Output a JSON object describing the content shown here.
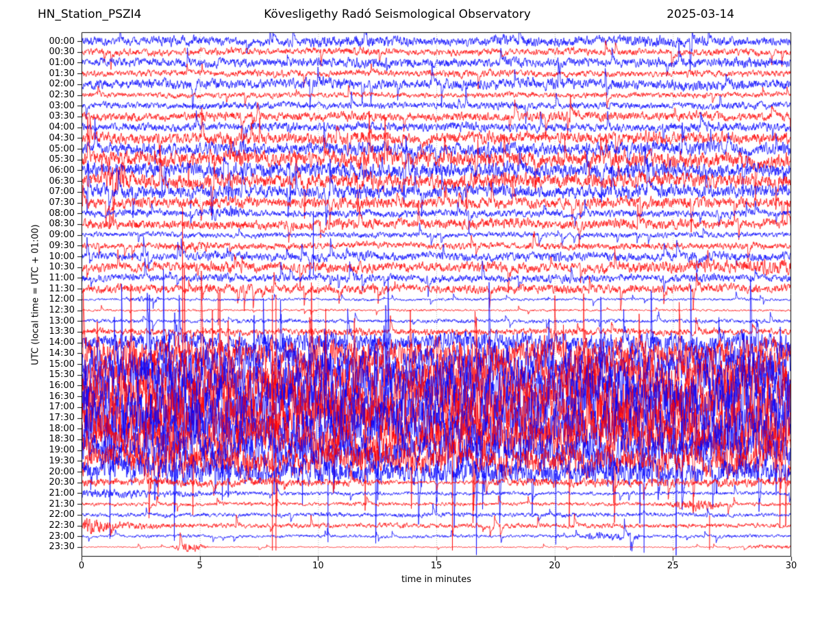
{
  "chart_data": {
    "type": "line",
    "subtype": "helicorder-dayplot",
    "titles": {
      "left": "HN_Station_PSZI4",
      "center": "Kövesligethy Radó Seismological Observatory",
      "right": "2025-03-14"
    },
    "xlabel": "time in minutes",
    "ylabel": "UTC (local time = UTC + 01:00)",
    "x_ticks": [
      0,
      5,
      10,
      15,
      20,
      25,
      30
    ],
    "x_range": [
      0,
      30
    ],
    "minutes_per_row": 30,
    "grid": {
      "vertical_dotted_at": [
        5,
        10,
        15,
        20,
        25
      ],
      "color": "#b0b0b0"
    },
    "colors": {
      "blue": "#0000ff",
      "red": "#ff0000",
      "axis": "#000000"
    },
    "rows": [
      {
        "label": "00:00",
        "c": "blue",
        "env": [
          9,
          8,
          11,
          9,
          8,
          10,
          13,
          9,
          8,
          12,
          11,
          9,
          12,
          11,
          9,
          9
        ]
      },
      {
        "label": "00:30",
        "c": "red",
        "env": [
          6,
          7,
          6,
          8,
          6,
          7,
          8,
          6,
          7,
          6,
          8,
          7,
          6,
          8,
          7,
          6
        ]
      },
      {
        "label": "01:00",
        "c": "blue",
        "env": [
          8,
          9,
          8,
          10,
          8,
          9,
          11,
          9,
          8,
          10,
          9,
          8,
          10,
          9,
          11,
          9
        ]
      },
      {
        "label": "01:30",
        "c": "red",
        "env": [
          6,
          6,
          7,
          6,
          8,
          6,
          7,
          6,
          8,
          7,
          6,
          7,
          6,
          8,
          6,
          7
        ]
      },
      {
        "label": "02:00",
        "c": "blue",
        "env": [
          10,
          9,
          11,
          10,
          9,
          12,
          10,
          9,
          11,
          10,
          12,
          10,
          9,
          11,
          10,
          10
        ]
      },
      {
        "label": "02:30",
        "c": "red",
        "env": [
          5,
          5,
          6,
          5,
          6,
          5,
          6,
          5,
          5,
          6,
          5,
          6,
          5,
          6,
          5,
          5
        ]
      },
      {
        "label": "03:00",
        "c": "blue",
        "env": [
          6,
          7,
          6,
          7,
          8,
          6,
          7,
          6,
          7,
          8,
          6,
          7,
          6,
          7,
          8,
          7
        ]
      },
      {
        "label": "03:30",
        "c": "red",
        "env": [
          8,
          9,
          8,
          10,
          8,
          9,
          10,
          8,
          9,
          8,
          10,
          9,
          8,
          10,
          8,
          9
        ]
      },
      {
        "label": "04:00",
        "c": "blue",
        "env": [
          8,
          8,
          9,
          8,
          10,
          8,
          9,
          8,
          10,
          9,
          8,
          9,
          8,
          10,
          9,
          9
        ]
      },
      {
        "label": "04:30",
        "c": "red",
        "env": [
          11,
          12,
          11,
          13,
          11,
          12,
          14,
          11,
          12,
          13,
          11,
          12,
          14,
          12,
          11,
          12
        ]
      },
      {
        "label": "05:00",
        "c": "blue",
        "env": [
          12,
          13,
          12,
          14,
          12,
          13,
          15,
          12,
          13,
          14,
          12,
          13,
          15,
          13,
          12,
          13
        ]
      },
      {
        "label": "05:30",
        "c": "red",
        "env": [
          15,
          16,
          15,
          18,
          15,
          16,
          18,
          15,
          16,
          17,
          15,
          16,
          18,
          16,
          15,
          16
        ]
      },
      {
        "label": "06:00",
        "c": "blue",
        "env": [
          14,
          15,
          14,
          16,
          14,
          15,
          17,
          14,
          15,
          16,
          14,
          15,
          17,
          15,
          14,
          15
        ]
      },
      {
        "label": "06:30",
        "c": "red",
        "env": [
          14,
          15,
          14,
          16,
          14,
          15,
          17,
          14,
          15,
          16,
          14,
          15,
          17,
          15,
          14,
          15
        ]
      },
      {
        "label": "07:00",
        "c": "blue",
        "env": [
          12,
          13,
          12,
          14,
          12,
          13,
          15,
          12,
          13,
          14,
          12,
          13,
          15,
          13,
          12,
          13
        ]
      },
      {
        "label": "07:30",
        "c": "red",
        "env": [
          10,
          11,
          10,
          12,
          10,
          11,
          13,
          10,
          11,
          12,
          10,
          11,
          12,
          11,
          10,
          11
        ]
      },
      {
        "label": "08:00",
        "c": "blue",
        "env": [
          7,
          8,
          7,
          8,
          6,
          7,
          8,
          7,
          8,
          7,
          8,
          7,
          8,
          7,
          8,
          7
        ]
      },
      {
        "label": "08:30",
        "c": "red",
        "env": [
          9,
          10,
          9,
          11,
          9,
          10,
          11,
          9,
          10,
          11,
          9,
          10,
          11,
          10,
          9,
          10
        ]
      },
      {
        "label": "09:00",
        "c": "blue",
        "env": [
          5,
          5,
          6,
          5,
          6,
          5,
          6,
          5,
          5,
          6,
          5,
          6,
          5,
          6,
          5,
          5
        ]
      },
      {
        "label": "09:30",
        "c": "red",
        "env": [
          6,
          6,
          7,
          6,
          7,
          6,
          7,
          6,
          7,
          6,
          7,
          6,
          7,
          6,
          7,
          6
        ]
      },
      {
        "label": "10:00",
        "c": "blue",
        "env": [
          8,
          9,
          8,
          10,
          8,
          9,
          10,
          8,
          9,
          8,
          10,
          9,
          8,
          10,
          8,
          9
        ]
      },
      {
        "label": "10:30",
        "c": "red",
        "env": [
          9,
          10,
          9,
          11,
          9,
          10,
          11,
          9,
          10,
          11,
          9,
          10,
          11,
          12,
          14,
          16
        ]
      },
      {
        "label": "11:00",
        "c": "blue",
        "env": [
          7,
          8,
          7,
          9,
          7,
          8,
          9,
          7,
          8,
          7,
          9,
          8,
          7,
          9,
          7,
          8
        ]
      },
      {
        "label": "11:30",
        "c": "red",
        "env": [
          8,
          9,
          8,
          10,
          8,
          9,
          10,
          8,
          9,
          8,
          10,
          9,
          8,
          10,
          8,
          9
        ]
      },
      {
        "label": "12:00",
        "c": "blue",
        "env": [
          2.5,
          2.5,
          3,
          2.5,
          3,
          2.5,
          3,
          2.5,
          3,
          2.5,
          3,
          2.5,
          3,
          2.5,
          3,
          2.5
        ]
      },
      {
        "label": "12:30",
        "c": "red",
        "env": [
          2,
          2,
          2.5,
          2,
          2,
          2.5,
          2,
          2.5,
          2,
          2,
          2.5,
          2,
          2,
          2.5,
          2,
          2
        ]
      },
      {
        "label": "13:00",
        "c": "blue",
        "env": [
          3.5,
          4,
          3.5,
          4,
          4.5,
          4,
          3.5,
          4,
          4.5,
          4,
          3.5,
          4,
          3.5,
          4.5,
          4,
          4
        ]
      },
      {
        "label": "13:30",
        "c": "red",
        "env": [
          6,
          7,
          6,
          8,
          6,
          7,
          8,
          6,
          7,
          6,
          8,
          7,
          6,
          8,
          6,
          7
        ]
      },
      {
        "label": "14:00",
        "c": "blue",
        "env": [
          16,
          18,
          22,
          19,
          18,
          23,
          20,
          18,
          22,
          20,
          18,
          23,
          20,
          18,
          22,
          20
        ]
      },
      {
        "label": "14:30",
        "c": "red",
        "env": [
          26,
          28,
          32,
          28,
          26,
          31,
          28,
          26,
          32,
          28,
          26,
          31,
          28,
          26,
          32,
          28
        ]
      },
      {
        "label": "15:00",
        "c": "blue",
        "env": [
          34,
          36,
          40,
          36,
          34,
          40,
          36,
          34,
          40,
          36,
          34,
          40,
          36,
          34,
          40,
          36
        ]
      },
      {
        "label": "15:30",
        "c": "red",
        "env": [
          40,
          42,
          46,
          42,
          40,
          46,
          42,
          40,
          46,
          42,
          40,
          46,
          42,
          40,
          46,
          42
        ]
      },
      {
        "label": "16:00",
        "c": "blue",
        "env": [
          46,
          48,
          53,
          48,
          46,
          53,
          48,
          46,
          53,
          48,
          46,
          53,
          48,
          46,
          53,
          48
        ]
      },
      {
        "label": "16:30",
        "c": "red",
        "env": [
          48,
          50,
          55,
          50,
          48,
          55,
          50,
          48,
          55,
          50,
          48,
          55,
          50,
          48,
          55,
          50
        ]
      },
      {
        "label": "17:00",
        "c": "blue",
        "env": [
          52,
          54,
          58,
          54,
          52,
          58,
          54,
          52,
          58,
          54,
          52,
          58,
          54,
          52,
          58,
          54
        ]
      },
      {
        "label": "17:30",
        "c": "red",
        "env": [
          50,
          52,
          56,
          52,
          50,
          56,
          52,
          50,
          56,
          52,
          50,
          56,
          52,
          50,
          56,
          52
        ]
      },
      {
        "label": "18:00",
        "c": "blue",
        "env": [
          46,
          48,
          52,
          48,
          46,
          52,
          48,
          46,
          52,
          48,
          46,
          52,
          48,
          46,
          52,
          48
        ]
      },
      {
        "label": "18:30",
        "c": "red",
        "env": [
          40,
          42,
          46,
          42,
          40,
          46,
          42,
          40,
          46,
          42,
          40,
          46,
          42,
          40,
          46,
          42
        ]
      },
      {
        "label": "19:00",
        "c": "blue",
        "env": [
          34,
          36,
          40,
          36,
          34,
          40,
          36,
          34,
          40,
          36,
          34,
          40,
          36,
          34,
          40,
          36
        ]
      },
      {
        "label": "19:30",
        "c": "red",
        "env": [
          28,
          29,
          32,
          29,
          27,
          32,
          29,
          27,
          32,
          29,
          27,
          32,
          29,
          27,
          32,
          29
        ]
      },
      {
        "label": "20:00",
        "c": "blue",
        "env": [
          22,
          23,
          26,
          23,
          21,
          26,
          23,
          21,
          26,
          23,
          21,
          26,
          23,
          21,
          26,
          23
        ]
      },
      {
        "label": "20:30",
        "c": "red",
        "env": [
          9,
          8,
          9,
          8,
          9,
          8,
          7,
          3.5,
          3.5,
          8,
          9,
          8,
          9,
          8,
          9,
          8
        ]
      },
      {
        "label": "21:00",
        "c": "blue",
        "env": [
          10,
          8,
          6,
          5,
          4,
          4,
          4,
          3.5,
          4,
          4,
          3.5,
          4,
          4,
          3.5,
          4,
          4
        ]
      },
      {
        "label": "21:30",
        "c": "red",
        "env": [
          4,
          3.5,
          4,
          3.5,
          4,
          3.5,
          4,
          3.5,
          4,
          3.5,
          4,
          3.5,
          4,
          5,
          4,
          3.5
        ]
      },
      {
        "label": "22:00",
        "c": "blue",
        "env": [
          4,
          4,
          4.5,
          4,
          4,
          4.5,
          4,
          5,
          4.5,
          4,
          5,
          4.5,
          4,
          4.5,
          4,
          4
        ]
      },
      {
        "label": "22:30",
        "c": "red",
        "env": [
          10,
          7,
          5,
          5,
          4.5,
          5,
          4.5,
          5,
          4.5,
          5,
          4.5,
          5,
          4.5,
          5,
          4.5,
          4.5
        ]
      },
      {
        "label": "23:00",
        "c": "blue",
        "env": [
          3,
          3,
          3.5,
          3,
          3,
          3.5,
          3,
          3,
          3.5,
          3,
          3.5,
          4,
          3,
          3,
          3.5,
          3
        ]
      },
      {
        "label": "23:30",
        "c": "red",
        "env": [
          1.2,
          1.3,
          1.4,
          1.3,
          1.2,
          1.3,
          1.2,
          1.3,
          1.2,
          1.3,
          1.2,
          1.3,
          1.2,
          1.3,
          1.5,
          2
        ]
      }
    ],
    "bursts": [
      {
        "row": 13,
        "m0": 0.9,
        "m1": 2.1,
        "amp": 20,
        "shape": "spindle"
      },
      {
        "row": 16,
        "m0": 5.4,
        "m1": 6.6,
        "amp": 5,
        "shape": "flat"
      },
      {
        "row": 19,
        "m0": 4.0,
        "m1": 5.6,
        "amp": 4,
        "shape": "flat"
      },
      {
        "row": 24,
        "m0": 1.9,
        "m1": 3.3,
        "amp": 2.5,
        "shape": "flat"
      },
      {
        "row": 43,
        "m0": 24.8,
        "m1": 27.2,
        "amp": 7,
        "shape": "spindle"
      },
      {
        "row": 45,
        "m0": 0.0,
        "m1": 1.8,
        "amp": 11,
        "shape": "decay"
      },
      {
        "row": 46,
        "m0": 21.3,
        "m1": 23.6,
        "amp": 4,
        "shape": "flat"
      },
      {
        "row": 47,
        "m0": 3.7,
        "m1": 5.4,
        "amp": 8,
        "shape": "spindle"
      },
      {
        "row": 47,
        "m0": 28.2,
        "m1": 30,
        "amp": 2.2,
        "shape": "flat"
      }
    ],
    "spikes": [
      {
        "row": 25,
        "m": 4.27,
        "up": 150,
        "down": 62
      },
      {
        "row": 25,
        "m": 5.78,
        "up": 26,
        "down": 22
      },
      {
        "row": 20,
        "m": 9.8,
        "up": 66,
        "down": 28
      },
      {
        "row": 44,
        "m": 10.42,
        "up": 44,
        "down": 40
      },
      {
        "row": 47,
        "m": 8.07,
        "up": 368,
        "down": 5
      },
      {
        "row": 47,
        "m": 8.22,
        "up": 368,
        "down": 5
      },
      {
        "row": 47,
        "m": 15.68,
        "up": 178,
        "down": 5
      },
      {
        "row": 46,
        "m": 20.05,
        "up": 92,
        "down": 12
      },
      {
        "row": 46,
        "m": 23.78,
        "up": 120,
        "down": 24
      },
      {
        "row": 47,
        "m": 26.55,
        "up": 46,
        "down": 4
      }
    ]
  }
}
